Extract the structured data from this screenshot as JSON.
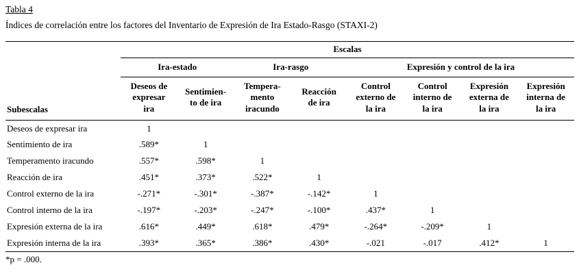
{
  "page": {
    "title": "Tabla 4",
    "subtitle": "Índices de correlación entre los factores del Inventario de Expresión de Ira Estado-Rasgo (STAXI-2)",
    "footnote": "*p = .000."
  },
  "chart_data": {
    "type": "table",
    "title": "Índices de correlación entre los factores del Inventario de Expresión de Ira Estado-Rasgo (STAXI-2)",
    "escalas_header": "Escalas",
    "subescalas_header": "Subescalas",
    "group_headers": [
      {
        "label": "Ira-estado",
        "colspan": 2
      },
      {
        "label": "Ira-rasgo",
        "colspan": 2
      },
      {
        "label": "Expresión y control de la ira",
        "colspan": 4
      }
    ],
    "column_headers": [
      "Deseos de\nexpresar\nira",
      "Sentimien-\nto de ira",
      "Tempera-\nmento\niracundo",
      "Reacción\nde ira",
      "Control\nexterno de\nla ira",
      "Control\ninterno de\nla ira",
      "Expresión\nexterna de\nla ira",
      "Expresión\ninterna de\nla ira"
    ],
    "rows": [
      {
        "label": "Deseos de expresar ira",
        "values": [
          "1",
          "",
          "",
          "",
          "",
          "",
          "",
          ""
        ]
      },
      {
        "label": "Sentimiento de ira",
        "values": [
          ".589*",
          "1",
          "",
          "",
          "",
          "",
          "",
          ""
        ]
      },
      {
        "label": "Temperamento iracundo",
        "values": [
          ".557*",
          ".598*",
          "1",
          "",
          "",
          "",
          "",
          ""
        ]
      },
      {
        "label": "Reacción de ira",
        "values": [
          ".451*",
          ".373*",
          ".522*",
          "1",
          "",
          "",
          "",
          ""
        ]
      },
      {
        "label": "Control externo de la ira",
        "values": [
          "-.271*",
          "-.301*",
          "-.387*",
          "-.142*",
          "1",
          "",
          "",
          ""
        ]
      },
      {
        "label": "Control interno de la ira",
        "values": [
          "-.197*",
          "-.203*",
          "-.247*",
          "-.100*",
          ".437*",
          "1",
          "",
          ""
        ]
      },
      {
        "label": "Expresión externa de la ira",
        "values": [
          ".616*",
          ".449*",
          ".618*",
          ".479*",
          "-.264*",
          "-.209*",
          "1",
          ""
        ]
      },
      {
        "label": "Expresión interna de la ira",
        "values": [
          ".393*",
          ".365*",
          ".386*",
          ".430*",
          "-.021",
          "-.017",
          ".412*",
          "1"
        ]
      }
    ]
  }
}
